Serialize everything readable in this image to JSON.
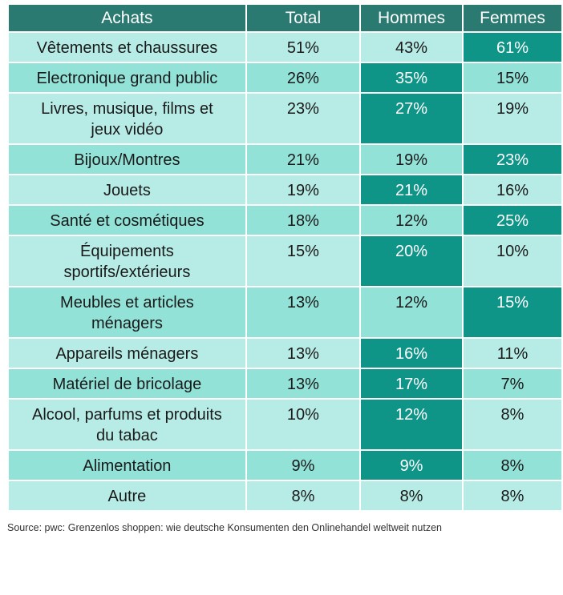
{
  "chart_data": {
    "type": "table",
    "columns": [
      "Achats",
      "Total",
      "Hommes",
      "Femmes"
    ],
    "rows": [
      {
        "label": "Vêtements et chaussures",
        "label_lines": [
          "Vêtements et chaussures"
        ],
        "values": [
          "51%",
          "43%",
          "61%"
        ]
      },
      {
        "label": "Electronique grand public",
        "label_lines": [
          "Electronique grand public"
        ],
        "values": [
          "26%",
          "35%",
          "15%"
        ]
      },
      {
        "label": "Livres, musique, films et jeux vidéo",
        "label_lines": [
          "Livres, musique, films et",
          "jeux vidéo"
        ],
        "values": [
          "23%",
          "27%",
          "19%"
        ]
      },
      {
        "label": "Bijoux/Montres",
        "label_lines": [
          "Bijoux/Montres"
        ],
        "values": [
          "21%",
          "19%",
          "23%"
        ]
      },
      {
        "label": "Jouets",
        "label_lines": [
          "Jouets"
        ],
        "values": [
          "19%",
          "21%",
          "16%"
        ]
      },
      {
        "label": "Santé et cosmétiques",
        "label_lines": [
          "Santé et cosmétiques"
        ],
        "values": [
          "18%",
          "12%",
          "25%"
        ]
      },
      {
        "label": "Équipements sportifs/extérieurs",
        "label_lines": [
          "Équipements",
          "sportifs/extérieurs"
        ],
        "values": [
          "15%",
          "20%",
          "10%"
        ]
      },
      {
        "label": "Meubles et articles ménagers",
        "label_lines": [
          "Meubles et articles",
          "ménagers"
        ],
        "values": [
          "13%",
          "12%",
          "15%"
        ]
      },
      {
        "label": "Appareils ménagers",
        "label_lines": [
          "Appareils ménagers"
        ],
        "values": [
          "13%",
          "16%",
          "11%"
        ]
      },
      {
        "label": "Matériel de bricolage",
        "label_lines": [
          "Matériel de bricolage"
        ],
        "values": [
          "13%",
          "17%",
          "7%"
        ]
      },
      {
        "label": "Alcool, parfums et produits du tabac",
        "label_lines": [
          "Alcool, parfums et produits",
          "du tabac"
        ],
        "values": [
          "10%",
          "12%",
          "8%"
        ]
      },
      {
        "label": "Alimentation",
        "label_lines": [
          "Alimentation"
        ],
        "values": [
          "9%",
          "9%",
          "8%"
        ]
      },
      {
        "label": "Autre",
        "label_lines": [
          "Autre"
        ],
        "values": [
          "8%",
          "8%",
          "8%"
        ]
      }
    ],
    "highlight": {
      "color": "#0f9488",
      "rule": "higher of Hommes / Femmes highlighted"
    },
    "colors": {
      "header": "#2a7a72",
      "row_light": "#b7ece6",
      "row_mid": "#92e2d8",
      "highlight": "#0f9488"
    }
  },
  "source": "Source: pwc: Grenzenlos shoppen: wie deutsche Konsumenten den Onlinehandel weltweit nutzen"
}
